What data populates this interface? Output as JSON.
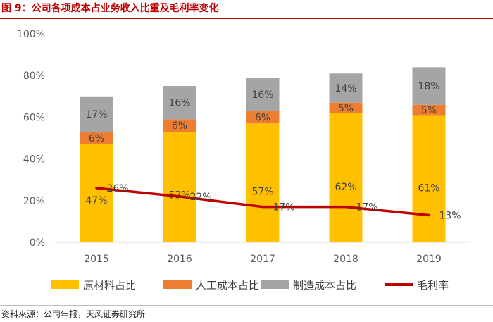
{
  "figure_title": "图 9：公司各项成本占业务收入比重及毛利率变化",
  "source_note": "资料来源：公司年报，天风证券研究所",
  "chart_data": {
    "type": "bar",
    "stacked": true,
    "title": "图 9：公司各项成本占业务收入比重及毛利率变化",
    "categories": [
      "2015",
      "2016",
      "2017",
      "2018",
      "2019"
    ],
    "y_ticks": [
      "0%",
      "20%",
      "40%",
      "60%",
      "80%",
      "100%"
    ],
    "ylim": [
      0,
      100
    ],
    "grid": false,
    "legend_position": "bottom",
    "series": [
      {
        "name": "原材料占比",
        "kind": "bar",
        "color": "#ffc000",
        "values": [
          47,
          53,
          57,
          62,
          61
        ],
        "labels": [
          "47%",
          "53%",
          "57%",
          "62%",
          "61%"
        ]
      },
      {
        "name": "人工成本占比",
        "kind": "bar",
        "color": "#ed7d31",
        "values": [
          6,
          6,
          6,
          5,
          5
        ],
        "labels": [
          "6%",
          "6%",
          "6%",
          "5%",
          "5%"
        ]
      },
      {
        "name": "制造成本占比",
        "kind": "bar",
        "color": "#a5a5a5",
        "values": [
          17,
          16,
          16,
          14,
          18
        ],
        "labels": [
          "17%",
          "16%",
          "16%",
          "14%",
          "18%"
        ]
      },
      {
        "name": "毛利率",
        "kind": "line",
        "color": "#c00000",
        "values": [
          26,
          22,
          17,
          17,
          13
        ],
        "labels": [
          "26%",
          "22%",
          "17%",
          "17%",
          "13%"
        ]
      }
    ]
  }
}
